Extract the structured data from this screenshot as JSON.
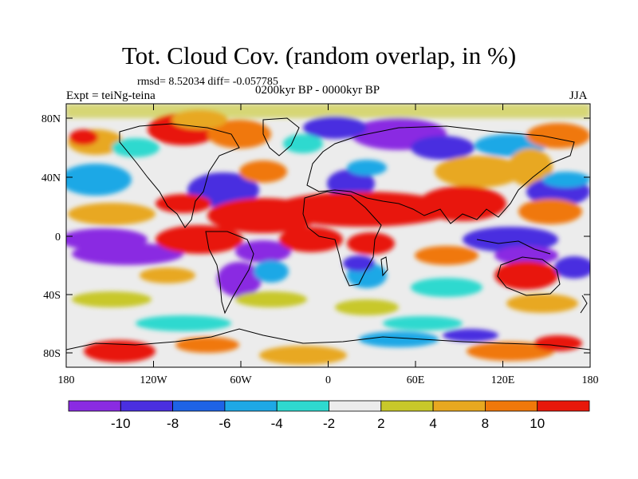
{
  "figure": {
    "title": "Tot. Cloud Cov. (random overlap, in %)",
    "stats": "rmsd= 8.52034 diff= -0.057785",
    "period": "0200kyr BP - 0000kyr BP",
    "experiment": "Expt = teiNg-teina",
    "season": "JJA"
  },
  "axes": {
    "lat_ticks": [
      "80N",
      "40N",
      "0",
      "40S",
      "80S"
    ],
    "lon_ticks": [
      "180",
      "120W",
      "60W",
      "0",
      "60E",
      "120E",
      "180"
    ]
  },
  "colorbar": {
    "colors": [
      "#8a2be2",
      "#4a2fe0",
      "#1e63e6",
      "#1ea8e6",
      "#2ed9cf",
      "#ececec",
      "#c8c82a",
      "#e8a820",
      "#f0780a",
      "#e8180a"
    ],
    "labels": [
      "-10",
      "-8",
      "-6",
      "-4",
      "-2",
      "2",
      "4",
      "8",
      "10"
    ]
  }
}
